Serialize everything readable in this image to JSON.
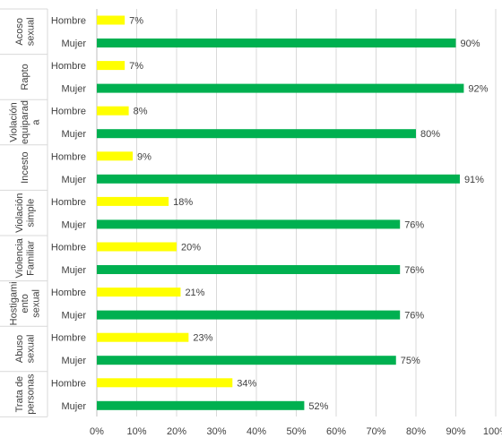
{
  "chart_data": {
    "type": "bar",
    "orientation": "horizontal",
    "categories": [
      "Acoso sexual",
      "Rapto",
      "Violación equiparada",
      "Incesto",
      "Violación simple",
      "Violencia Familiar",
      "Hostigamiento sexual",
      "Abuso sexual",
      "Trata de personas"
    ],
    "category_label_lines": [
      [
        "Acoso",
        "sexual"
      ],
      [
        "Rapto"
      ],
      [
        "Violación",
        "equiparad",
        "a"
      ],
      [
        "Incesto"
      ],
      [
        "Violación",
        "simple"
      ],
      [
        "Violencia",
        "Familiar"
      ],
      [
        "Hostigami",
        "ento",
        "sexual"
      ],
      [
        "Abuso",
        "sexual"
      ],
      [
        "Trata de",
        "personas"
      ]
    ],
    "series": [
      {
        "name": "Hombre",
        "color": "#FFFF00",
        "values": [
          7,
          7,
          8,
          9,
          18,
          20,
          21,
          23,
          34
        ]
      },
      {
        "name": "Mujer",
        "color": "#00B050",
        "values": [
          90,
          92,
          80,
          91,
          76,
          76,
          76,
          75,
          52
        ]
      }
    ],
    "value_suffix": "%",
    "xlim": [
      0,
      100
    ],
    "xticks": [
      0,
      10,
      20,
      30,
      40,
      50,
      60,
      70,
      80,
      90,
      100
    ],
    "grid": true,
    "legend": "none",
    "title": "",
    "xlabel": "",
    "ylabel": ""
  }
}
